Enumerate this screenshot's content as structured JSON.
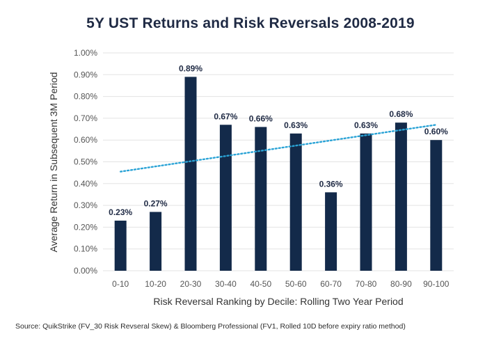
{
  "source_note": "Source: QuikStrike (FV_30 Risk Revseral Skew) & Bloomberg Professional (FV1, Rolled 10D before expiry ratio method)",
  "colors": {
    "bar": "#132a4a",
    "trend": "#2aa3d6",
    "grid": "#e3e3e3",
    "title": "#1f2a44"
  },
  "chart_data": {
    "type": "bar",
    "title": "5Y UST Returns and Risk Reversals 2008-2019",
    "xlabel": "Risk Reversal Ranking by Decile: Rolling Two Year Period",
    "ylabel": "Average Return in Subsequent 3M Period",
    "ylim": [
      0,
      1.0
    ],
    "yticks": [
      0,
      0.1,
      0.2,
      0.3,
      0.4,
      0.5,
      0.6,
      0.7,
      0.8,
      0.9,
      1.0
    ],
    "ytick_labels": [
      "0.00%",
      "0.10%",
      "0.20%",
      "0.30%",
      "0.40%",
      "0.50%",
      "0.60%",
      "0.70%",
      "0.80%",
      "0.90%",
      "1.00%"
    ],
    "categories": [
      "0-10",
      "10-20",
      "20-30",
      "30-40",
      "40-50",
      "50-60",
      "60-70",
      "70-80",
      "80-90",
      "90-100"
    ],
    "values": [
      0.23,
      0.27,
      0.89,
      0.67,
      0.66,
      0.63,
      0.36,
      0.63,
      0.68,
      0.6
    ],
    "data_labels": [
      "0.23%",
      "0.27%",
      "0.89%",
      "0.67%",
      "0.66%",
      "0.63%",
      "0.36%",
      "0.63%",
      "0.68%",
      "0.60%"
    ],
    "trendline": {
      "type": "linear",
      "start": 0.455,
      "end": 0.67
    },
    "grid": true
  }
}
